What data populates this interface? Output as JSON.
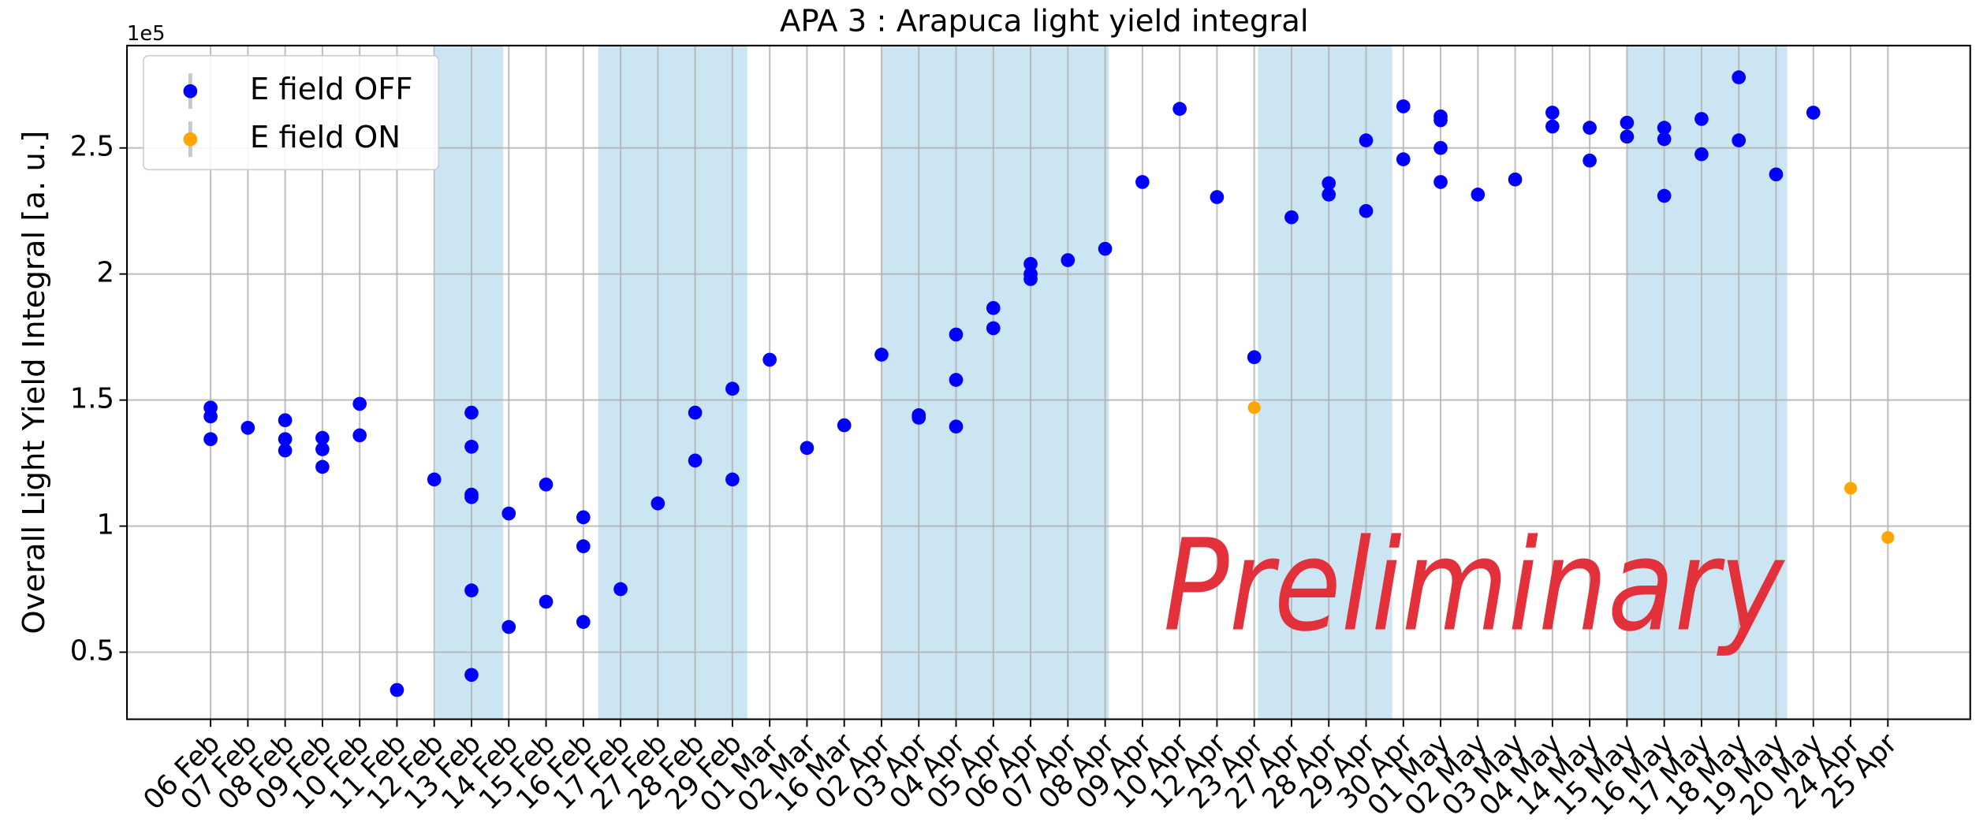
{
  "chart_data": {
    "type": "scatter",
    "title": "APA 3 : Arapuca light yield integral",
    "y_label": "Overall Light Yield Integral [a. u.]",
    "y_offset_text": "1e5",
    "annotation": "Preliminary",
    "annotation_color": "#e3313c",
    "categories": [
      "06 Feb",
      "07 Feb",
      "08 Feb",
      "09 Feb",
      "10 Feb",
      "11 Feb",
      "12 Feb",
      "13 Feb",
      "14 Feb",
      "15 Feb",
      "16 Feb",
      "17 Feb",
      "27 Feb",
      "28 Feb",
      "29 Feb",
      "01 Mar",
      "02 Mar",
      "16 Mar",
      "02 Apr",
      "03 Apr",
      "04 Apr",
      "05 Apr",
      "06 Apr",
      "07 Apr",
      "08 Apr",
      "09 Apr",
      "10 Apr",
      "12 Apr",
      "23 Apr",
      "27 Apr",
      "28 Apr",
      "29 Apr",
      "30 Apr",
      "01 May",
      "02 May",
      "03 May",
      "04 May",
      "14 May",
      "15 May",
      "16 May",
      "17 May",
      "18 May",
      "19 May",
      "20 May",
      "24 Apr",
      "25 Apr"
    ],
    "series": [
      {
        "name": "E field OFF",
        "color": "#0000ff",
        "x": [
          "06 Feb",
          "06 Feb",
          "06 Feb",
          "07 Feb",
          "08 Feb",
          "08 Feb",
          "08 Feb",
          "09 Feb",
          "09 Feb",
          "09 Feb",
          "10 Feb",
          "10 Feb",
          "11 Feb",
          "12 Feb",
          "13 Feb",
          "13 Feb",
          "13 Feb",
          "13 Feb",
          "13 Feb",
          "13 Feb",
          "14 Feb",
          "14 Feb",
          "15 Feb",
          "15 Feb",
          "16 Feb",
          "16 Feb",
          "16 Feb",
          "17 Feb",
          "27 Feb",
          "28 Feb",
          "28 Feb",
          "29 Feb",
          "29 Feb",
          "01 Mar",
          "02 Mar",
          "16 Mar",
          "02 Apr",
          "03 Apr",
          "03 Apr",
          "04 Apr",
          "04 Apr",
          "04 Apr",
          "05 Apr",
          "05 Apr",
          "06 Apr",
          "06 Apr",
          "06 Apr",
          "07 Apr",
          "08 Apr",
          "09 Apr",
          "10 Apr",
          "12 Apr",
          "23 Apr",
          "27 Apr",
          "28 Apr",
          "28 Apr",
          "29 Apr",
          "29 Apr",
          "30 Apr",
          "30 Apr",
          "01 May",
          "01 May",
          "01 May",
          "01 May",
          "02 May",
          "03 May",
          "04 May",
          "04 May",
          "14 May",
          "14 May",
          "15 May",
          "15 May",
          "16 May",
          "16 May",
          "16 May",
          "17 May",
          "17 May",
          "18 May",
          "18 May",
          "19 May",
          "20 May"
        ],
        "values": [
          1.47,
          1.435,
          1.345,
          1.39,
          1.42,
          1.345,
          1.3,
          1.35,
          1.305,
          1.235,
          1.485,
          1.36,
          0.35,
          1.185,
          1.45,
          1.315,
          1.125,
          1.115,
          0.745,
          0.41,
          1.05,
          0.6,
          1.165,
          0.7,
          1.035,
          0.92,
          0.62,
          0.75,
          1.09,
          1.45,
          1.26,
          1.545,
          1.185,
          1.66,
          1.31,
          1.4,
          1.68,
          1.44,
          1.43,
          1.76,
          1.58,
          1.395,
          1.865,
          1.785,
          2.04,
          2.0,
          1.98,
          2.055,
          2.1,
          2.365,
          2.655,
          2.305,
          1.67,
          2.225,
          2.36,
          2.315,
          2.53,
          2.25,
          2.665,
          2.455,
          2.625,
          2.61,
          2.5,
          2.365,
          2.315,
          2.375,
          2.64,
          2.585,
          2.58,
          2.45,
          2.6,
          2.545,
          2.58,
          2.535,
          2.31,
          2.615,
          2.475,
          2.78,
          2.53,
          2.395,
          2.64
        ]
      },
      {
        "name": "E field ON",
        "color": "#ffa500",
        "x": [
          "23 Apr",
          "24 Apr",
          "25 Apr"
        ],
        "values": [
          1.47,
          1.15,
          0.955
        ]
      }
    ],
    "shaded_spans": [
      [
        6.03,
        7.85
      ],
      [
        10.4,
        14.4
      ],
      [
        18.0,
        24.1
      ],
      [
        28.1,
        31.7
      ],
      [
        38.0,
        42.3
      ]
    ],
    "span_color": "#cbe6f2",
    "ylim": [
      0.234,
      2.906
    ],
    "yticks": [
      0.5,
      1.0,
      1.5,
      2.0,
      2.5
    ],
    "grid": true,
    "legend": "upper left"
  }
}
